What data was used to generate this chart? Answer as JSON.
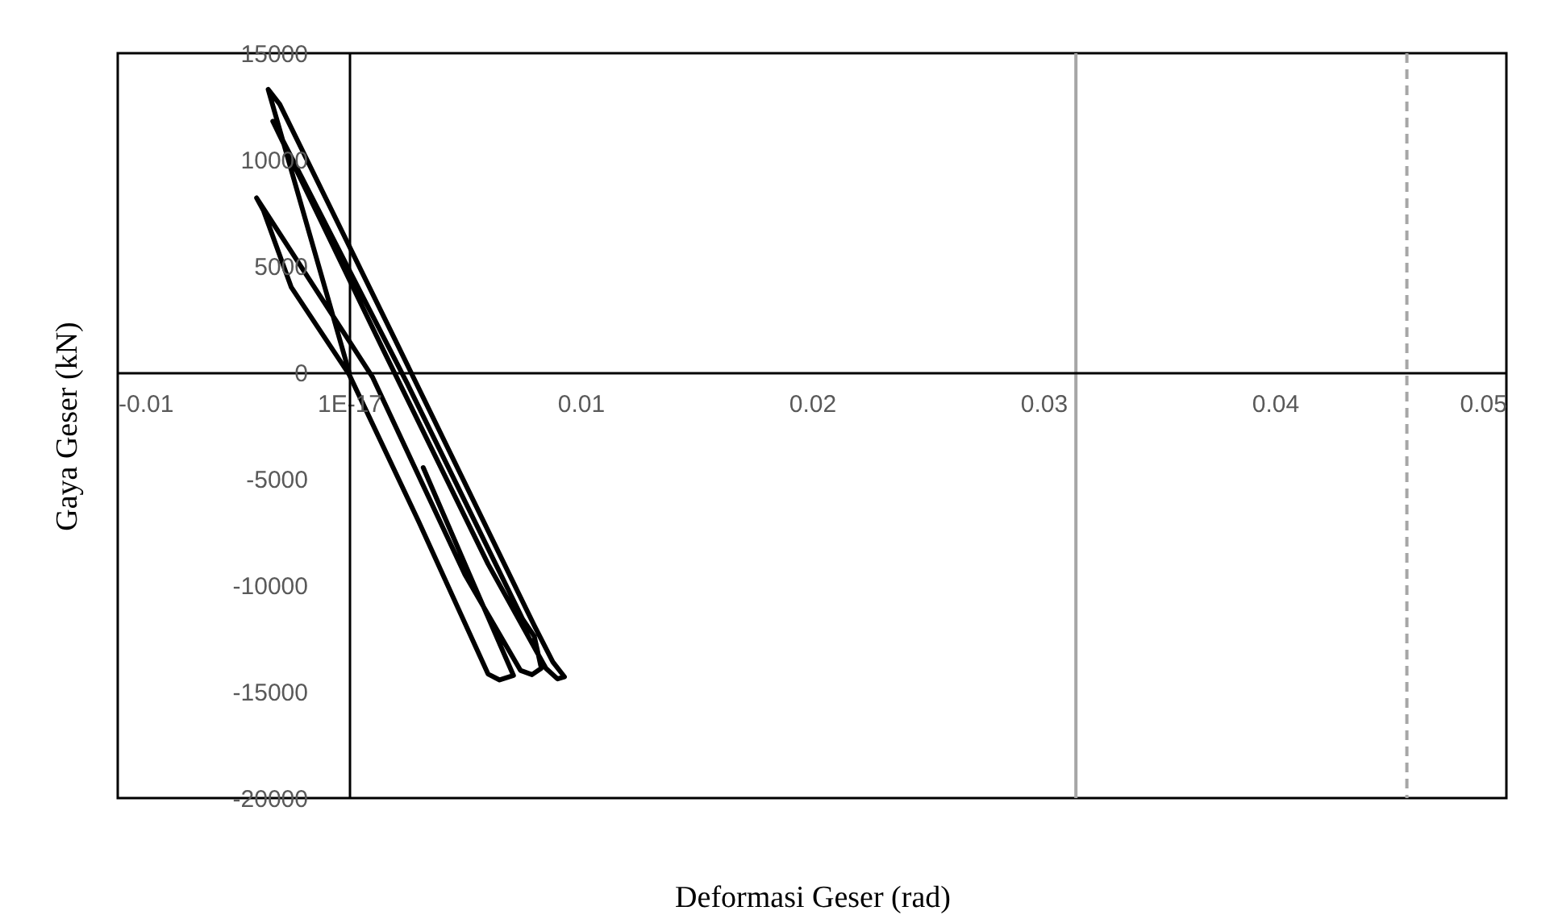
{
  "chart_data": {
    "type": "line",
    "xlabel": "Deformasi Geser (rad)",
    "ylabel": "Gaya Geser (kN)",
    "x": [
      0,
      -0.0035,
      -0.003,
      0.002,
      0.008,
      0.0088,
      0.0093,
      0.009,
      0.0085,
      0.006,
      0.0015,
      -0.0033,
      -0.0031,
      0.0025,
      0.0075,
      0.008,
      0.0083,
      0.0079,
      0.0074,
      0.005,
      0.001,
      -0.004,
      -0.0037,
      -0.0025,
      0,
      0.003,
      0.006,
      0.0065,
      0.0071,
      0.0052,
      0.0032
    ],
    "series": [
      {
        "color": "#000000",
        "values": [
          0,
          13300,
          12600,
          1500,
          -11900,
          -13600,
          -14300,
          -14400,
          -13900,
          -9000,
          1000,
          11800,
          11400,
          -500,
          -11600,
          -12400,
          -13900,
          -14200,
          -14000,
          -9500,
          -200,
          8200,
          7600,
          4000,
          -100,
          -7000,
          -14170,
          -14450,
          -14240,
          -9500,
          -4470
        ]
      }
    ],
    "xlim": [
      -0.01,
      0.05
    ],
    "xticks": [
      -0.01,
      {
        "value": 0,
        "label": "1E-17"
      },
      0.01,
      0.02,
      0.03,
      0.04,
      0.05
    ],
    "ylim": [
      -20000,
      15000
    ],
    "yticks": [
      -20000,
      -15000,
      -10000,
      -5000,
      0,
      5000,
      10000,
      15000
    ],
    "ref_lines": [
      {
        "axis": "x",
        "value": 0.0314,
        "color": "#a6a6a6",
        "line_style": "solid"
      },
      {
        "axis": "x",
        "value": 0.0457,
        "color": "#a6a6a6",
        "line_style": "dashed"
      }
    ],
    "grid": false,
    "marker": "none",
    "line_style": "solid"
  }
}
